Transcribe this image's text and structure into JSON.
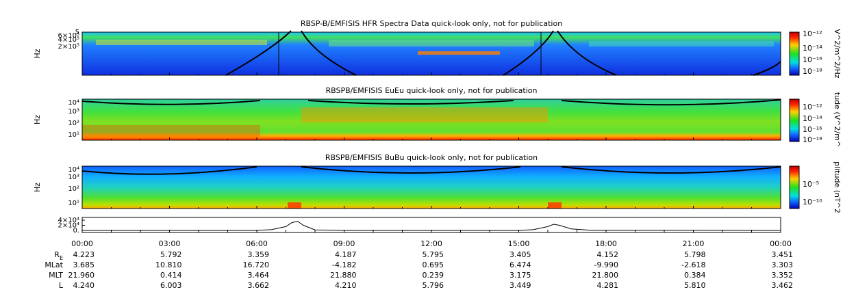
{
  "panels": [
    {
      "title": "RBSP-B/EMFISIS  HFR Spectra Data quick-look only, not for publication",
      "ylabel": "Hz",
      "yticks": [
        "5",
        "6×10⁵",
        "4×10⁵",
        "2×10⁵"
      ],
      "colorbar_label": "V^2/m^2/Hz",
      "colorbar_ticks": [
        "10⁻¹²",
        "10⁻¹⁴",
        "10⁻¹⁶",
        "10⁻¹⁸"
      ]
    },
    {
      "title": "RBSPB/EMFISIS  EuEu quick-look only, not for publication",
      "ylabel": "Hz",
      "yticks": [
        "10⁴",
        "10³",
        "10²",
        "10¹"
      ],
      "colorbar_label": "tude (V^2/m^",
      "colorbar_ticks": [
        "10⁻¹²",
        "10⁻¹⁴",
        "10⁻¹⁶",
        "10⁻¹⁸"
      ]
    },
    {
      "title": "RBSPB/EMFISIS  BuBu quick-look only, not for publication",
      "ylabel": "Hz",
      "yticks": [
        "10⁴",
        "10³",
        "10²",
        "10¹"
      ],
      "colorbar_label": "plitude (nT^2",
      "colorbar_ticks": [
        "10⁻⁵",
        "10⁻¹⁰"
      ]
    }
  ],
  "line_panel": {
    "ylim": [
      0,
      40000
    ],
    "yticks": [
      {
        "value": 40000,
        "label": "4×10⁴"
      },
      {
        "value": 20000,
        "label": "2×10⁴"
      },
      {
        "value": 0,
        "label": "0."
      }
    ],
    "x": [
      0,
      6,
      6.5,
      7,
      7.2,
      7.4,
      7.6,
      8,
      9,
      15,
      15.5,
      16,
      16.2,
      16.4,
      16.8,
      17.5,
      24
    ],
    "values": [
      0,
      0,
      3000,
      15000,
      30000,
      36000,
      20000,
      2000,
      0,
      0,
      3000,
      15000,
      24000,
      20000,
      6000,
      500,
      0
    ]
  },
  "time_labels": [
    "00:00",
    "03:00",
    "06:00",
    "09:00",
    "12:00",
    "15:00",
    "18:00",
    "21:00",
    "00:00"
  ],
  "ephemeris": [
    {
      "label": "R",
      "subscript": "E",
      "values": [
        "4.223",
        "5.792",
        "3.359",
        "4.187",
        "5.795",
        "3.405",
        "4.152",
        "5.798",
        "3.451"
      ]
    },
    {
      "label": "MLat",
      "values": [
        "3.685",
        "10.810",
        "16.720",
        "-4.182",
        "0.695",
        "6.474",
        "-9.990",
        "-2.618",
        "3.303"
      ]
    },
    {
      "label": "MLT",
      "values": [
        "21.960",
        "0.414",
        "3.464",
        "21.880",
        "0.239",
        "3.175",
        "21.800",
        "0.384",
        "3.352"
      ]
    },
    {
      "label": "L",
      "values": [
        "4.240",
        "6.003",
        "3.662",
        "4.210",
        "5.796",
        "3.449",
        "4.281",
        "5.810",
        "3.462"
      ]
    }
  ]
}
